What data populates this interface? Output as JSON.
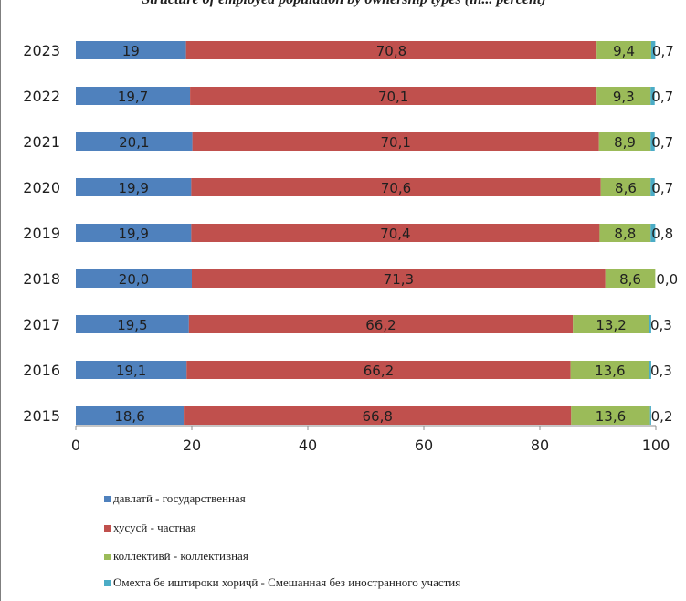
{
  "title": "Structure of employed population by ownership types (in... percent)",
  "chart_data": {
    "type": "bar",
    "orientation": "horizontal",
    "stacked": true,
    "categories": [
      "2023",
      "2022",
      "2021",
      "2020",
      "2019",
      "2018",
      "2017",
      "2016",
      "2015"
    ],
    "series": [
      {
        "name": "давлатӣ - государственная",
        "color": "#4f81bd",
        "values": [
          19,
          19.7,
          20.1,
          19.9,
          19.9,
          20.0,
          19.5,
          19.1,
          18.6
        ],
        "labels": [
          "19",
          "19,7",
          "20,1",
          "19,9",
          "19,9",
          "20,0",
          "19,5",
          "19,1",
          "18,6"
        ]
      },
      {
        "name": "хусусӣ - частная",
        "color": "#c0504d",
        "values": [
          70.8,
          70.1,
          70.1,
          70.6,
          70.4,
          71.3,
          66.2,
          66.2,
          66.8
        ],
        "labels": [
          "70,8",
          "70,1",
          "70,1",
          "70,6",
          "70,4",
          "71,3",
          "66,2",
          "66,2",
          "66,8"
        ]
      },
      {
        "name": "коллективӣ - коллективная",
        "color": "#9bbb59",
        "values": [
          9.4,
          9.3,
          8.9,
          8.6,
          8.8,
          8.6,
          13.2,
          13.6,
          13.6
        ],
        "labels": [
          "9,4",
          "9,3",
          "8,9",
          "8,6",
          "8,8",
          "8,6",
          "13,2",
          "13,6",
          "13,6"
        ]
      },
      {
        "name": "Омехта бе иштироки хориҷӣ  - Смешанная без иностранного участия",
        "color": "#4bacc6",
        "values": [
          0.7,
          0.7,
          0.7,
          0.7,
          0.8,
          0.0,
          0.3,
          0.3,
          0.2
        ],
        "labels": [
          "0,7",
          "0,7",
          "0,7",
          "0,7",
          "0,8",
          "0,0",
          "0,3",
          "0,3",
          "0,2"
        ]
      }
    ],
    "xlim": [
      0,
      100
    ],
    "xticks": [
      "0",
      "20",
      "40",
      "60",
      "80",
      "100"
    ],
    "grid": false,
    "legend_position": "bottom-left"
  }
}
